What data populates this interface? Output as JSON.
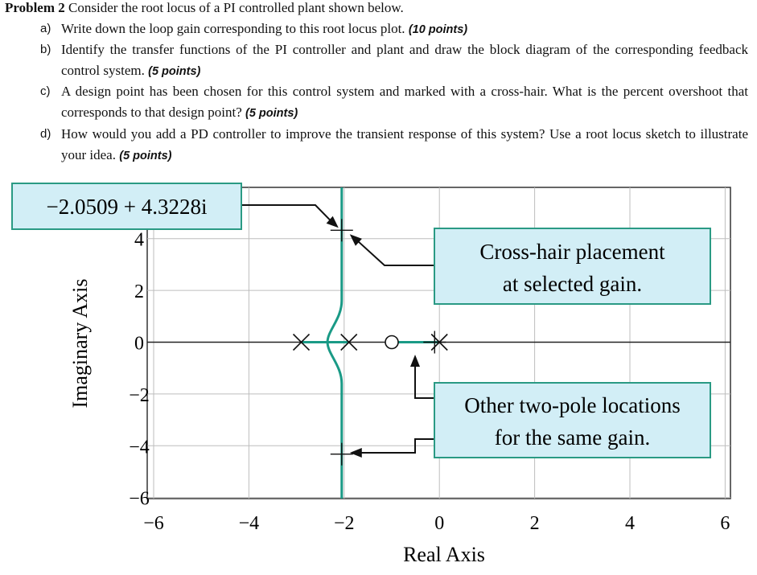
{
  "problem": {
    "label": "Problem 2",
    "intro": "Consider the root locus of a PI controlled plant shown below.",
    "items": [
      {
        "label": "a)",
        "text": "Write down the loop gain corresponding to this root locus plot.",
        "points": "(10 points)"
      },
      {
        "label": "b)",
        "text": "Identify the transfer functions of the PI controller and plant and draw the block diagram of the corresponding feedback control system.",
        "points": "(5 points)"
      },
      {
        "label": "c)",
        "text": "A design point has been chosen for this control system and marked with a cross-hair. What is the percent overshoot that corresponds to that design point?",
        "points": "(5 points)"
      },
      {
        "label": "d)",
        "text": "How would you add a PD controller to improve the transient response of this system? Use a root locus sketch to illustrate your idea.",
        "points": "(5 points)"
      }
    ]
  },
  "chart_data": {
    "type": "scatter",
    "xlabel": "Real Axis",
    "ylabel": "Imaginary Axis",
    "xlim": [
      -6,
      6
    ],
    "ylim": [
      -6,
      4.6
    ],
    "x_ticks": [
      -6,
      -4,
      -2,
      0,
      2,
      4,
      6
    ],
    "x_tick_labels": [
      "−6",
      "−4",
      "−2",
      "0",
      "2",
      "4",
      "6"
    ],
    "y_ticks": [
      4,
      2,
      0,
      -2,
      -4,
      -6
    ],
    "y_tick_labels": [
      "4",
      "2",
      "0",
      "−2",
      "−4",
      "−6"
    ],
    "grid": true,
    "poles": [
      -2.9,
      -1.9,
      0.0
    ],
    "zeros": [
      -1.0
    ],
    "locus_color": "#1a9a86",
    "design_point": {
      "x": -2.0509,
      "y": 4.3228,
      "label": "−2.0509 + 4.3228i"
    },
    "other_pole_points": [
      {
        "x": -2.0509,
        "y": -4.3228
      },
      {
        "x": -0.1,
        "y": 0.0
      }
    ],
    "annotations": [
      {
        "lines": [
          "Cross-hair placement",
          "at selected gain."
        ]
      },
      {
        "lines": [
          "Other two-pole locations",
          "for the same gain."
        ]
      }
    ],
    "callout_fill": "#d2eef6",
    "callout_border": "#2a9a84"
  }
}
